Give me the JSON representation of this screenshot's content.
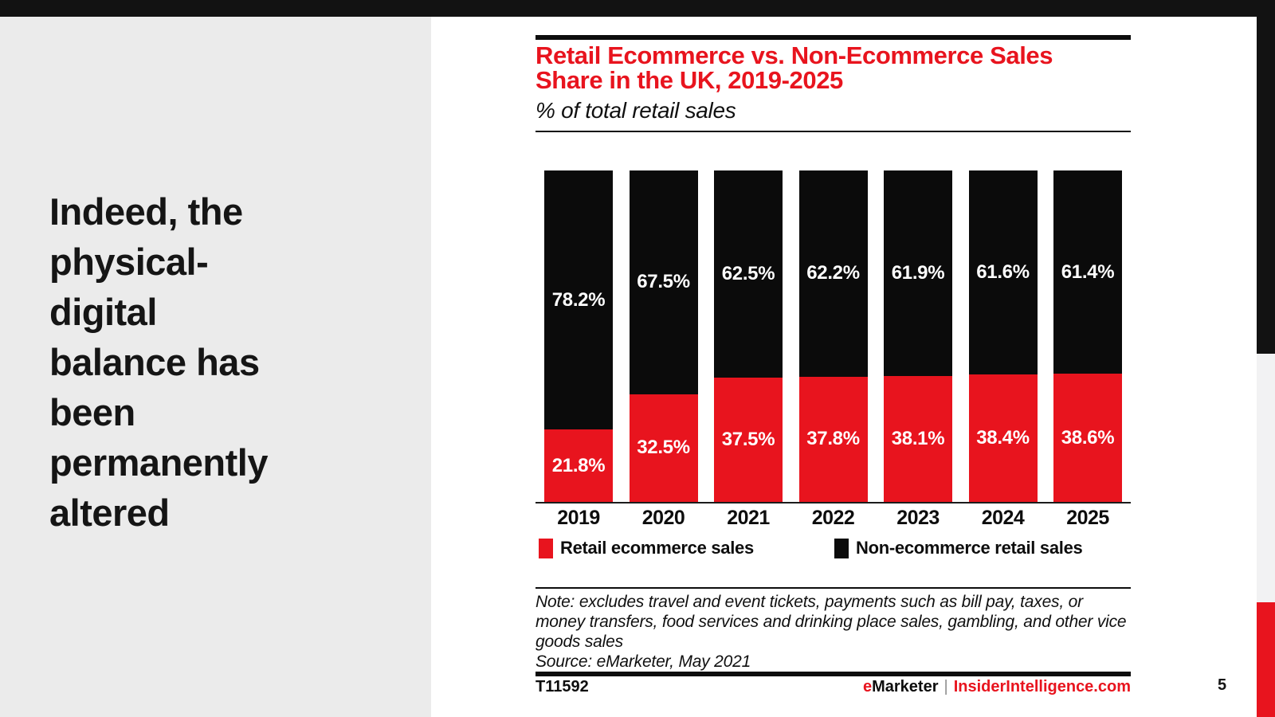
{
  "colors": {
    "red": "#E8141E",
    "ink": "#121212",
    "bar_black": "#0B0B0B",
    "panel_gray": "#EBEBEB",
    "edge_gray": "#F2F2F3"
  },
  "headline": {
    "text": "Indeed, the physical-digital balance has been permanently altered",
    "lines": [
      "Indeed, the",
      "physical-",
      "digital",
      "balance has",
      "been",
      "permanently",
      "altered"
    ]
  },
  "chart": {
    "title_line1": "Retail Ecommerce vs. Non-Ecommerce Sales",
    "title_line2": "Share in the UK,  2019-2025",
    "subtitle": "% of total retail sales",
    "legend": [
      {
        "label": "Retail ecommerce sales",
        "color": "#E8141E"
      },
      {
        "label": "Non-ecommerce retail sales",
        "color": "#0B0B0B"
      }
    ],
    "note_lines": [
      "Note: excludes travel and event tickets, payments such as bill pay, taxes, or",
      "money transfers, food services and drinking place sales, gambling, and other vice",
      "goods sales"
    ],
    "source": "Source: eMarketer, May 2021"
  },
  "chart_data": {
    "type": "bar",
    "stacked": true,
    "title": "Retail Ecommerce vs. Non-Ecommerce Sales Share in the UK, 2019-2025",
    "subtitle": "% of total retail sales",
    "categories": [
      "2019",
      "2020",
      "2021",
      "2022",
      "2023",
      "2024",
      "2025"
    ],
    "series": [
      {
        "name": "Retail ecommerce sales",
        "color": "#E8141E",
        "values": [
          21.8,
          32.5,
          37.5,
          37.8,
          38.1,
          38.4,
          38.6
        ],
        "labels": [
          "21.8%",
          "32.5%",
          "37.5%",
          "37.8%",
          "38.1%",
          "38.4%",
          "38.6%"
        ]
      },
      {
        "name": "Non-ecommerce retail sales",
        "color": "#0B0B0B",
        "values": [
          78.2,
          67.5,
          62.5,
          62.2,
          61.9,
          61.6,
          61.4
        ],
        "labels": [
          "78.2%",
          "67.5%",
          "62.5%",
          "62.2%",
          "61.9%",
          "61.6%",
          "61.4%"
        ]
      }
    ],
    "xlabel": "",
    "ylabel": "% of total retail sales",
    "ylim": [
      0,
      100
    ],
    "grid": false,
    "legend_position": "bottom",
    "value_labels": "inside-centered-white"
  },
  "footer": {
    "chart_id": "T11592",
    "brand_e": "e",
    "brand_rest": "Marketer",
    "pipe": "|",
    "site": "InsiderIntelligence.com",
    "page_number": "5"
  }
}
